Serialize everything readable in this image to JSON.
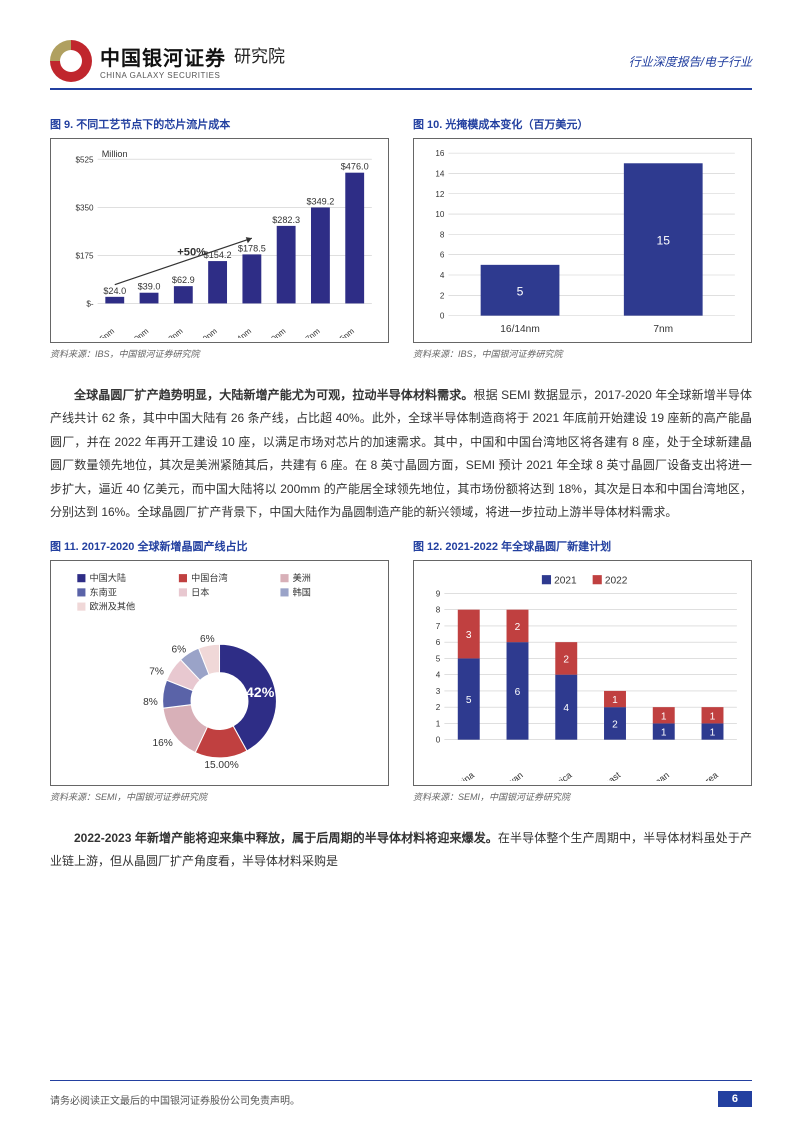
{
  "header": {
    "logo_cn": "中国银河证券",
    "logo_en": "CHINA GALAXY SECURITIES",
    "institute": "研究院",
    "right": "行业深度报告/电子行业"
  },
  "fig9": {
    "title": "图 9. 不同工艺节点下的芯片流片成本",
    "yunit": "Million",
    "type": "bar",
    "ylim": [
      0,
      525
    ],
    "yticks": [
      "$-",
      "$175",
      "$350",
      "$525"
    ],
    "categories": [
      "65nm",
      "45/40nm",
      "28nm",
      "20nm",
      "16/14nm",
      "10nm",
      "7nm",
      "5nm"
    ],
    "values": [
      24.0,
      39.0,
      62.9,
      154.2,
      178.5,
      282.3,
      349.2,
      476.0
    ],
    "labels": [
      "$24.0",
      "$39.0",
      "$62.9",
      "$154.2",
      "$178.5",
      "$282.3",
      "$349.2",
      "$476.0"
    ],
    "arrow_label": "+50%",
    "bar_color": "#2e2d86",
    "grid_color": "#cccccc"
  },
  "fig10": {
    "title": "图 10. 光掩模成本变化（百万美元）",
    "type": "bar",
    "ylim": [
      0,
      16
    ],
    "yticks": [
      0,
      2,
      4,
      6,
      8,
      10,
      12,
      14,
      16
    ],
    "categories": [
      "16/14nm",
      "7nm"
    ],
    "values": [
      5,
      15
    ],
    "bar_color": "#2e3a8f",
    "grid_color": "#cccccc"
  },
  "src_a": "资料来源：IBS，中国银河证券研究院",
  "para1_lead": "全球晶圆厂扩产趋势明显，大陆新增产能尤为可观，拉动半导体材料需求。",
  "para1_body": "根据 SEMI 数据显示，2017-2020 年全球新增半导体产线共计 62 条，其中中国大陆有 26 条产线，占比超 40%。此外，全球半导体制造商将于 2021 年底前开始建设 19 座新的高产能晶圆厂，并在 2022 年再开工建设 10 座，以满足市场对芯片的加速需求。其中，中国和中国台湾地区将各建有 8 座，处于全球新建晶圆厂数量领先地位，其次是美洲紧随其后，共建有 6 座。在 8 英寸晶圆方面，SEMI 预计 2021 年全球 8 英寸晶圆厂设备支出将进一步扩大，逼近 40 亿美元，而中国大陆将以 200mm 的产能居全球领先地位，其市场份额将达到 18%，其次是日本和中国台湾地区，分别达到 16%。全球晶圆厂扩产背景下，中国大陆作为晶圆制造产能的新兴领域，将进一步拉动上游半导体材料需求。",
  "fig11": {
    "title": "图 11. 2017-2020 全球新增晶圆产线占比",
    "type": "pie",
    "legend": [
      {
        "name": "中国大陆",
        "color": "#2e2d86",
        "pct": 42
      },
      {
        "name": "中国台湾",
        "color": "#c04040",
        "pct": 15
      },
      {
        "name": "美洲",
        "color": "#d8b0b8",
        "pct": 16
      },
      {
        "name": "东南亚",
        "color": "#5a63a8",
        "pct": 8
      },
      {
        "name": "日本",
        "color": "#e8c8d0",
        "pct": 7
      },
      {
        "name": "韩国",
        "color": "#9aa3c8",
        "pct": 6
      },
      {
        "name": "欧洲及其他",
        "color": "#f0d8d8",
        "pct": 6
      }
    ],
    "label_main": "42%",
    "label_15": "15.00%",
    "label_16": "16%",
    "label_8": "8%",
    "label_7": "7%",
    "label_6a": "6%",
    "label_6b": "6%"
  },
  "fig12": {
    "title": "图 12. 2021-2022 年全球晶圆厂新建计划",
    "type": "stacked-bar",
    "ylim": [
      0,
      9
    ],
    "yticks": [
      0,
      1,
      2,
      3,
      4,
      5,
      6,
      7,
      8,
      9
    ],
    "series": [
      {
        "name": "2021",
        "color": "#2e3a8f"
      },
      {
        "name": "2022",
        "color": "#c04040"
      }
    ],
    "categories": [
      "China",
      "Taiwan",
      "North America",
      "Europe&Mideast",
      "Japan",
      "South Korea"
    ],
    "v2021": [
      5,
      6,
      4,
      2,
      1,
      1
    ],
    "v2022": [
      3,
      2,
      2,
      1,
      1,
      1
    ]
  },
  "src_b": "资料来源：SEMI，中国银河证券研究院",
  "para2_lead": "2022-2023 年新增产能将迎来集中释放，属于后周期的半导体材料将迎来爆发。",
  "para2_body": "在半导体整个生产周期中，半导体材料虽处于产业链上游，但从晶圆厂扩产角度看，半导体材料采购是",
  "footer": {
    "disclaimer": "请务必阅读正文最后的中国银河证券股份公司免责声明。",
    "page": "6"
  }
}
